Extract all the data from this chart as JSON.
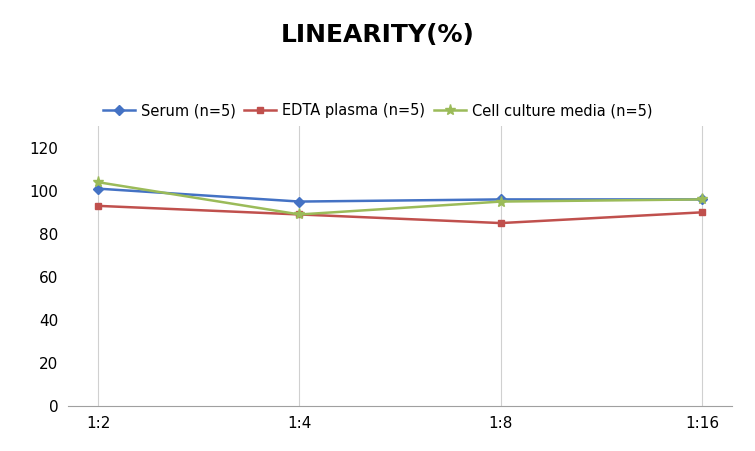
{
  "title": "LINEARITY(%)",
  "x_labels": [
    "1:2",
    "1:4",
    "1:8",
    "1:16"
  ],
  "series": [
    {
      "label": "Serum (n=5)",
      "values": [
        101,
        95,
        96,
        96
      ],
      "color": "#4472C4",
      "marker": "D",
      "markersize": 5
    },
    {
      "label": "EDTA plasma (n=5)",
      "values": [
        93,
        89,
        85,
        90
      ],
      "color": "#C0504D",
      "marker": "s",
      "markersize": 5
    },
    {
      "label": "Cell culture media (n=5)",
      "values": [
        104,
        89,
        95,
        96
      ],
      "color": "#9BBB59",
      "marker": "*",
      "markersize": 8
    }
  ],
  "ylim": [
    0,
    130
  ],
  "yticks": [
    0,
    20,
    40,
    60,
    80,
    100,
    120
  ],
  "background_color": "#ffffff",
  "title_fontsize": 18,
  "legend_fontsize": 10.5,
  "tick_fontsize": 11,
  "grid_color": "#d0d0d0"
}
